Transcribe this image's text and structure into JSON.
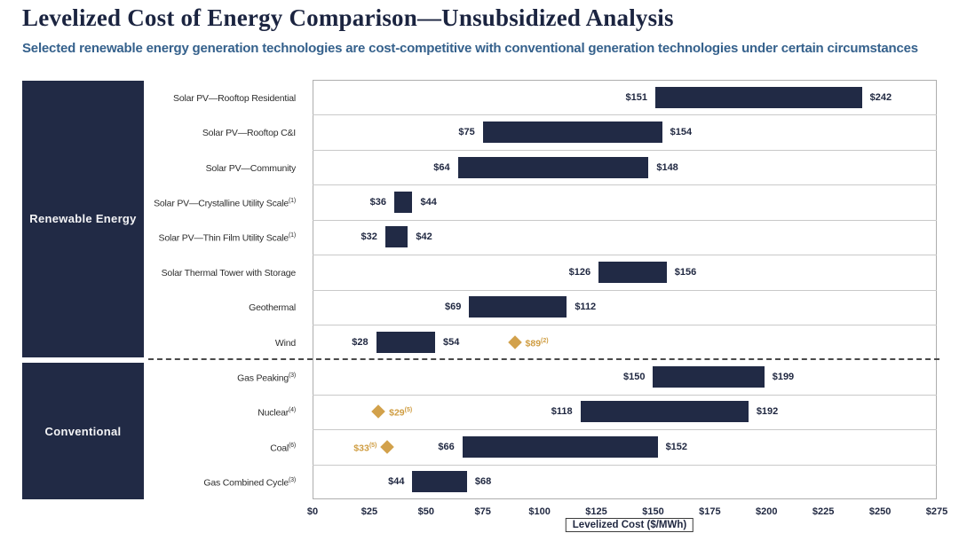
{
  "header": {
    "title": "Levelized Cost of Energy Comparison—Unsubsidized Analysis",
    "subtitle": "Selected renewable energy generation technologies are cost-competitive with conventional generation technologies under certain circumstances"
  },
  "chart_data": {
    "type": "bar",
    "subtype": "horizontal-range-bars",
    "title": "Levelized Cost of Energy Comparison—Unsubsidized Analysis",
    "xlabel": "Levelized Cost ($/MWh)",
    "xlim": [
      0,
      275
    ],
    "xtick_step": 25,
    "xtick_labels": [
      "$0",
      "$25",
      "$50",
      "$75",
      "$100",
      "$125",
      "$150",
      "$175",
      "$200",
      "$225",
      "$250",
      "$275"
    ],
    "grid": "horizontal row separators only",
    "legend": "none",
    "groups": [
      {
        "label": "Renewable Energy",
        "row_count": 8
      },
      {
        "label": "Conventional",
        "row_count": 4
      }
    ],
    "rows": [
      {
        "group": "Renewable Energy",
        "label": "Solar PV—Rooftop Residential",
        "sup": "",
        "low": 151,
        "high": 242,
        "low_label": "$151",
        "high_label": "$242"
      },
      {
        "group": "Renewable Energy",
        "label": "Solar PV—Rooftop C&I",
        "sup": "",
        "low": 75,
        "high": 154,
        "low_label": "$75",
        "high_label": "$154"
      },
      {
        "group": "Renewable Energy",
        "label": "Solar PV—Community",
        "sup": "",
        "low": 64,
        "high": 148,
        "low_label": "$64",
        "high_label": "$148"
      },
      {
        "group": "Renewable Energy",
        "label": "Solar PV—Crystalline Utility Scale",
        "sup": "(1)",
        "low": 36,
        "high": 44,
        "low_label": "$36",
        "high_label": "$44"
      },
      {
        "group": "Renewable Energy",
        "label": "Solar PV—Thin Film Utility Scale",
        "sup": "(1)",
        "low": 32,
        "high": 42,
        "low_label": "$32",
        "high_label": "$42"
      },
      {
        "group": "Renewable Energy",
        "label": "Solar Thermal Tower with Storage",
        "sup": "",
        "low": 126,
        "high": 156,
        "low_label": "$126",
        "high_label": "$156"
      },
      {
        "group": "Renewable Energy",
        "label": "Geothermal",
        "sup": "",
        "low": 69,
        "high": 112,
        "low_label": "$69",
        "high_label": "$112"
      },
      {
        "group": "Renewable Energy",
        "label": "Wind",
        "sup": "",
        "low": 28,
        "high": 54,
        "low_label": "$28",
        "high_label": "$54",
        "marker": {
          "value": 89,
          "label": "$89",
          "sup": "(2)",
          "label_side": "right"
        }
      },
      {
        "group": "Conventional",
        "label": "Gas Peaking",
        "sup": "(3)",
        "low": 150,
        "high": 199,
        "low_label": "$150",
        "high_label": "$199"
      },
      {
        "group": "Conventional",
        "label": "Nuclear",
        "sup": "(4)",
        "low": 118,
        "high": 192,
        "low_label": "$118",
        "high_label": "$192",
        "marker": {
          "value": 29,
          "label": "$29",
          "sup": "(5)",
          "label_side": "right"
        }
      },
      {
        "group": "Conventional",
        "label": "Coal",
        "sup": "(6)",
        "low": 66,
        "high": 152,
        "low_label": "$66",
        "high_label": "$152",
        "marker": {
          "value": 33,
          "label": "$33",
          "sup": "(5)",
          "label_side": "left"
        }
      },
      {
        "group": "Conventional",
        "label": "Gas Combined Cycle",
        "sup": "(3)",
        "low": 44,
        "high": 68,
        "low_label": "$44",
        "high_label": "$68"
      }
    ],
    "colors": {
      "bar": "#212a45",
      "group_box": "#212a45",
      "marker_diamond": "#d2a14b",
      "marker_label": "#cf9d42",
      "title": "#1b2440",
      "subtitle": "#35618c",
      "gridline": "#c9c9c9",
      "dashed_divider": "#4a4a4a"
    }
  }
}
